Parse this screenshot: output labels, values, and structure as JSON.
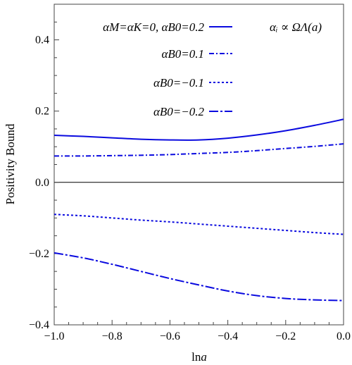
{
  "chart_data": {
    "type": "line",
    "xlabel": "ln a",
    "ylabel": "Positivity Bound",
    "xlim": [
      -1.0,
      0.0
    ],
    "ylim": [
      -0.4,
      0.5
    ],
    "x_ticks": [
      -1.0,
      -0.8,
      -0.6,
      -0.4,
      -0.2,
      0.0
    ],
    "x_tick_labels": [
      "−1.0",
      "−0.8",
      "−0.6",
      "−0.4",
      "−0.2",
      "0.0"
    ],
    "y_ticks": [
      -0.4,
      -0.2,
      0.0,
      0.2,
      0.4
    ],
    "y_tick_labels": [
      "−0.4",
      "−0.2",
      "0.0",
      "0.2",
      "0.4"
    ],
    "grid": false,
    "zero_line": true,
    "legend_placement": "top",
    "legend_note": "αᵢ ∝ ΩΛ(a)",
    "series": [
      {
        "name": "αM=αK=0,  αB0=0.2",
        "style": "solid",
        "color": "#0a0adf",
        "x": [
          -1.0,
          -0.9,
          -0.8,
          -0.7,
          -0.6,
          -0.5,
          -0.4,
          -0.3,
          -0.2,
          -0.1,
          0.0
        ],
        "y": [
          0.132,
          0.129,
          0.125,
          0.121,
          0.119,
          0.119,
          0.124,
          0.133,
          0.145,
          0.16,
          0.177
        ]
      },
      {
        "name": "αB0=0.1",
        "style": "dashdot",
        "color": "#0a0adf",
        "x": [
          -1.0,
          -0.9,
          -0.8,
          -0.7,
          -0.6,
          -0.5,
          -0.4,
          -0.3,
          -0.2,
          -0.1,
          0.0
        ],
        "y": [
          0.074,
          0.074,
          0.075,
          0.076,
          0.078,
          0.081,
          0.084,
          0.089,
          0.095,
          0.101,
          0.108
        ]
      },
      {
        "name": "αB0=−0.1",
        "style": "dotted",
        "color": "#0a0adf",
        "x": [
          -1.0,
          -0.9,
          -0.8,
          -0.7,
          -0.6,
          -0.5,
          -0.4,
          -0.3,
          -0.2,
          -0.1,
          0.0
        ],
        "y": [
          -0.09,
          -0.094,
          -0.1,
          -0.106,
          -0.111,
          -0.117,
          -0.123,
          -0.129,
          -0.135,
          -0.141,
          -0.146
        ]
      },
      {
        "name": "αB0=−0.2",
        "style": "longdash",
        "color": "#0a0adf",
        "x": [
          -1.0,
          -0.9,
          -0.8,
          -0.7,
          -0.6,
          -0.5,
          -0.4,
          -0.3,
          -0.2,
          -0.1,
          0.0
        ],
        "y": [
          -0.198,
          -0.212,
          -0.23,
          -0.25,
          -0.27,
          -0.288,
          -0.305,
          -0.318,
          -0.326,
          -0.33,
          -0.332
        ]
      }
    ]
  }
}
